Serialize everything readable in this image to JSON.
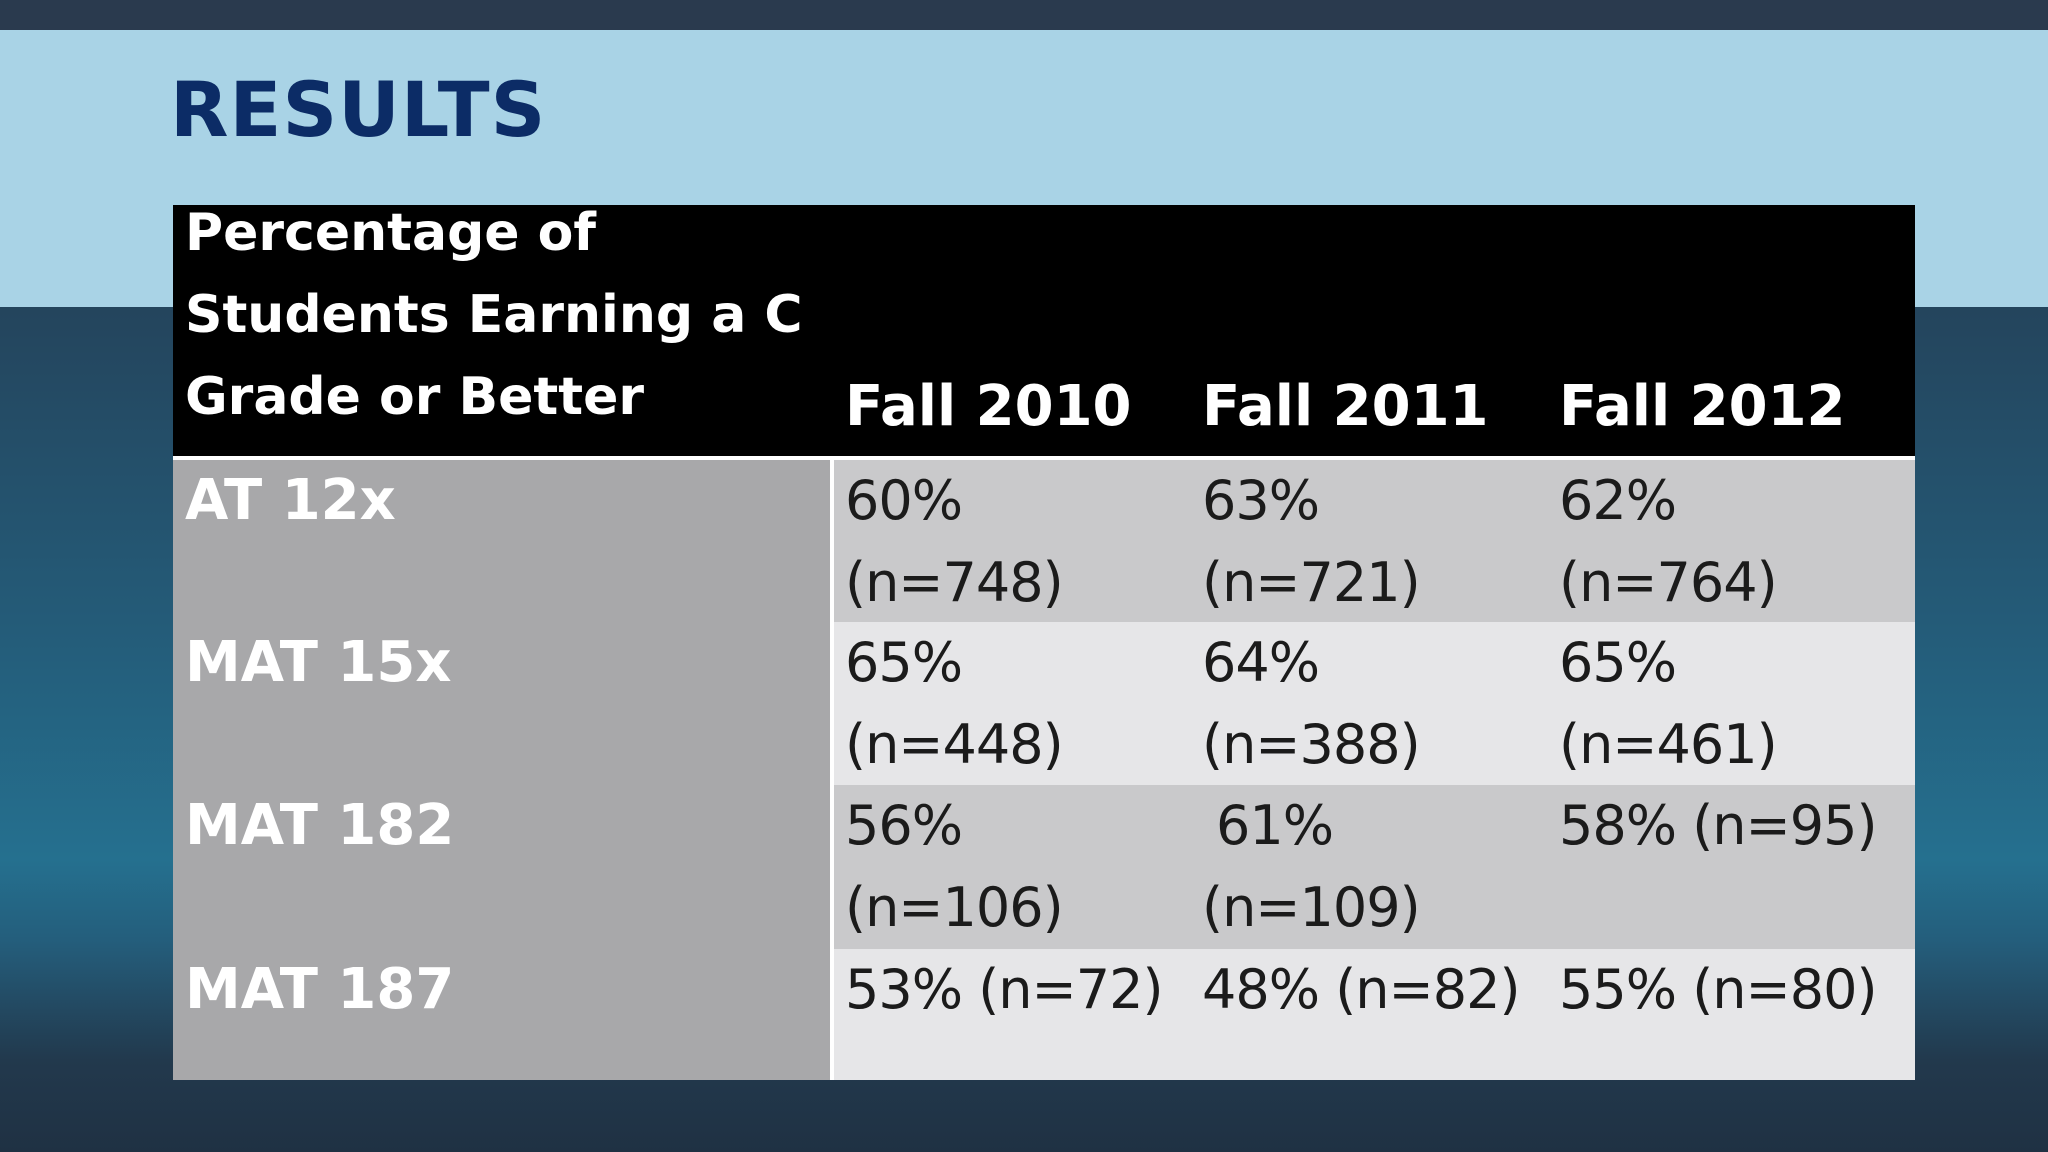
{
  "slide": {
    "title": "RESULTS"
  },
  "table": {
    "header": {
      "label_lines": [
        "Percentage of",
        "Students Earning a C",
        "Grade or Better"
      ],
      "years": [
        "Fall 2010",
        "Fall 2011",
        "Fall 2012"
      ]
    },
    "rows": [
      {
        "label": "AT 12x",
        "cells": [
          {
            "pct": "60%",
            "n": "(n=748)"
          },
          {
            "pct": "63%",
            "n": "(n=721)"
          },
          {
            "pct": "62%",
            "n": "(n=764)"
          }
        ]
      },
      {
        "label": "MAT 15x",
        "cells": [
          {
            "pct": "65%",
            "n": "(n=448)"
          },
          {
            "pct": "64%",
            "n": "(n=388)"
          },
          {
            "pct": "65%",
            "n": "(n=461)"
          }
        ]
      },
      {
        "label": "MAT 182",
        "cells": [
          {
            "pct": "56%",
            "n": "(n=106)"
          },
          {
            "pct": "61%",
            "n": "(n=109)"
          },
          {
            "text": "58% (n=95)"
          }
        ]
      },
      {
        "label": "MAT 187",
        "cells": [
          {
            "text": "53% (n=72)"
          },
          {
            "text": "48% (n=82)"
          },
          {
            "text": "55% (n=80)"
          }
        ]
      }
    ]
  },
  "colors": {
    "title": "#0c2c66",
    "title_band": "#a9d3e6",
    "header_bg": "#000000",
    "row_label_bg": "#a8a8aa",
    "row_dark": "#c9c9cb",
    "row_light": "#e6e6e8"
  }
}
